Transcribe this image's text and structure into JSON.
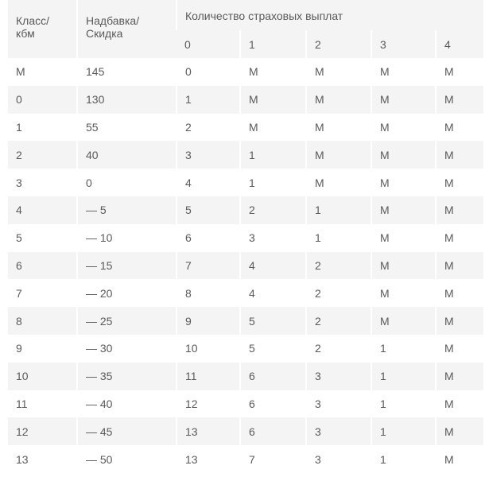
{
  "table": {
    "header": {
      "class": [
        "Класс/",
        "кбм"
      ],
      "bonus": [
        "Надбавка/",
        "Скидка"
      ],
      "group": "Количество страховых выплат",
      "claims": [
        "0",
        "1",
        "2",
        "3",
        "4"
      ]
    },
    "rows": [
      [
        "M",
        "145",
        "0",
        "M",
        "M",
        "M",
        "M"
      ],
      [
        "0",
        "130",
        "1",
        "M",
        "M",
        "M",
        "M"
      ],
      [
        "1",
        "55",
        "2",
        "M",
        "M",
        "M",
        "M"
      ],
      [
        "2",
        "40",
        "3",
        "1",
        "M",
        "M",
        "M"
      ],
      [
        "3",
        "0",
        "4",
        "1",
        "M",
        "M",
        "M"
      ],
      [
        "4",
        "— 5",
        "5",
        "2",
        "1",
        "M",
        "M"
      ],
      [
        "5",
        "— 10",
        "6",
        "3",
        "1",
        "M",
        "M"
      ],
      [
        "6",
        "— 15",
        "7",
        "4",
        "2",
        "M",
        "M"
      ],
      [
        "7",
        "— 20",
        "8",
        "4",
        "2",
        "M",
        "M"
      ],
      [
        "8",
        "— 25",
        "9",
        "5",
        "2",
        "M",
        "M"
      ],
      [
        "9",
        "— 30",
        "10",
        "5",
        "2",
        "1",
        "M"
      ],
      [
        "10",
        "— 35",
        "11",
        "6",
        "3",
        "1",
        "M"
      ],
      [
        "11",
        "— 40",
        "12",
        "6",
        "3",
        "1",
        "M"
      ],
      [
        "12",
        "— 45",
        "13",
        "6",
        "3",
        "1",
        "M"
      ],
      [
        "13",
        "— 50",
        "13",
        "7",
        "3",
        "1",
        "M"
      ]
    ]
  }
}
